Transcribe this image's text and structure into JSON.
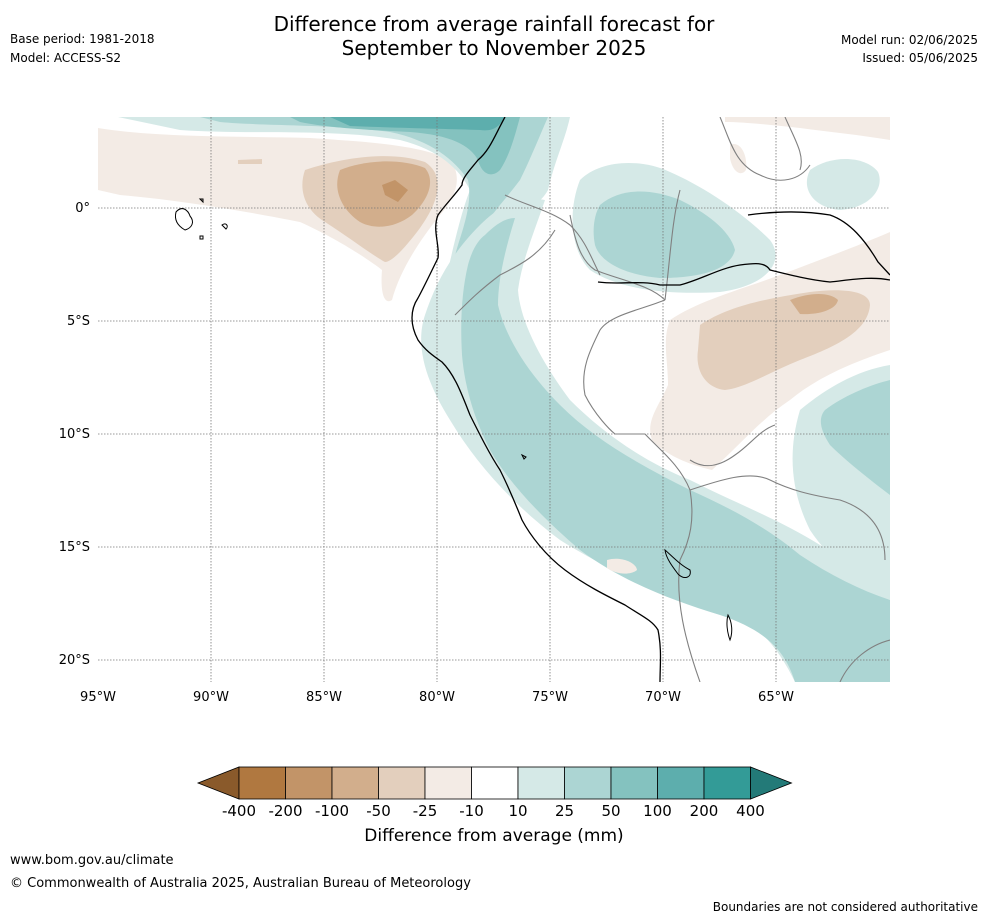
{
  "title_line1": "Difference from average rainfall forecast for",
  "title_line2": "September to November 2025",
  "base_period": "Base period: 1981-2018",
  "model": "Model: ACCESS-S2",
  "model_run": "Model run: 02/06/2025",
  "issued": "Issued: 05/06/2025",
  "map": {
    "lat_labels": [
      "0°",
      "5°S",
      "10°S",
      "15°S",
      "20°S"
    ],
    "lat_values": [
      0,
      -5,
      -10,
      -15,
      -20
    ],
    "lon_labels": [
      "95°W",
      "90°W",
      "85°W",
      "80°W",
      "75°W",
      "70°W",
      "65°W"
    ],
    "lon_values": [
      -95,
      -90,
      -85,
      -80,
      -75,
      -70,
      -65
    ]
  },
  "colorbar": {
    "title": "Difference from average (mm)",
    "ticks": [
      "-400",
      "-200",
      "-100",
      "-50",
      "-25",
      "-10",
      "10",
      "25",
      "50",
      "100",
      "200",
      "400"
    ],
    "colors": [
      "#8a5a2b",
      "#b07840",
      "#c29468",
      "#d2ae8c",
      "#e3cfbd",
      "#f3ebe5",
      "#ffffff",
      "#d5e9e7",
      "#acd5d3",
      "#84c2bf",
      "#5daead",
      "#339b97",
      "#237a78"
    ]
  },
  "footer": {
    "url": "www.bom.gov.au/climate",
    "copyright": "© Commonwealth of Australia 2025, Australian Bureau of Meteorology",
    "note": "Boundaries are not considered authoritative"
  }
}
